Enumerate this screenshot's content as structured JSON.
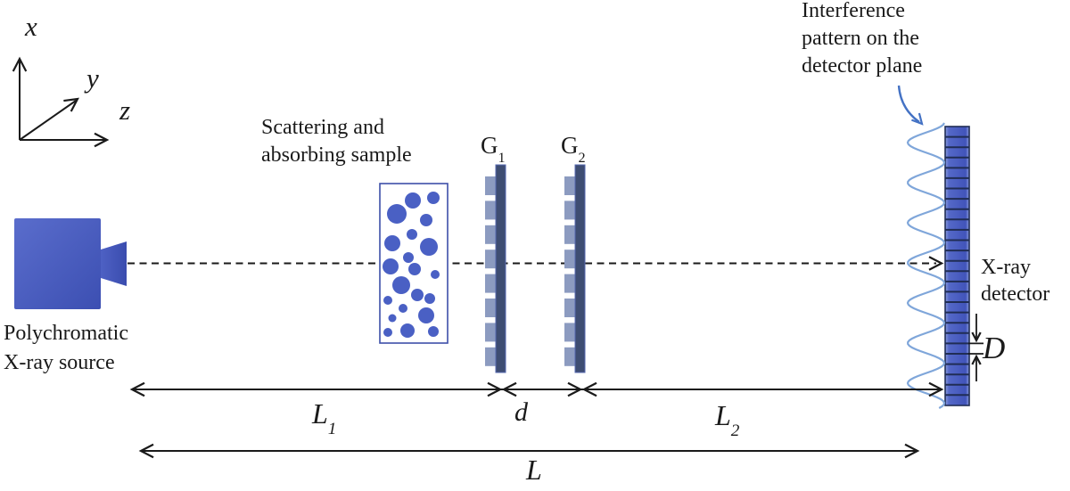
{
  "axes": {
    "x": "x",
    "y": "y",
    "z": "z"
  },
  "source_label": {
    "line1": "Polychromatic",
    "line2": "X-ray source"
  },
  "sample_label": {
    "line1": "Scattering and",
    "line2": "absorbing sample"
  },
  "gratings": {
    "g1": {
      "base": "G",
      "sub": "1"
    },
    "g2": {
      "base": "G",
      "sub": "2"
    }
  },
  "interference_label": {
    "line1": "Interference",
    "line2": "pattern on the",
    "line3": "detector plane"
  },
  "detector_label": {
    "line1": "X-ray",
    "line2": "detector"
  },
  "distances": {
    "l1": {
      "base": "L",
      "sub": "1"
    },
    "d": "d",
    "l2": {
      "base": "L",
      "sub": "2"
    },
    "l": "L",
    "pixel_size": "D"
  },
  "colors": {
    "ink": "#1a1a1a",
    "source_blue_light": "#5a6dcc",
    "source_blue_dark": "#3c4fb2",
    "circle_blue": "#4a60c4",
    "sample_border": "#3d4fa8",
    "grating_bar": "#3e4d72",
    "grating_tooth": "#8c9bc0",
    "detector_border": "#202d55",
    "wave": "#7fa6da",
    "annotation_arrow": "#4472c4"
  }
}
